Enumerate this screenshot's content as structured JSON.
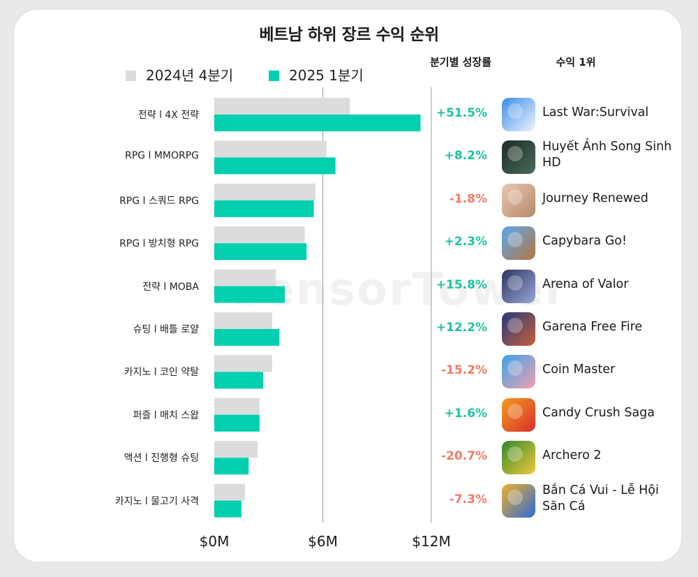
{
  "chart_data": {
    "type": "bar",
    "orientation": "horizontal",
    "title": "베트남 하위 장르 수익 순위",
    "categories": [
      "전략 l 4X 전략",
      "RPG l MMORPG",
      "RPG l 스쿼드 RPG",
      "RPG l 방치형 RPG",
      "전략 l MOBA",
      "슈팅 l 배틀 로얄",
      "카지노 l 코인 약탈",
      "퍼즐 l 매치 스왑",
      "액션 l 진행형 슈팅",
      "카지노 l 물고기 사격"
    ],
    "series": [
      {
        "name": "2024년 4분기",
        "color": "#dcdcdc",
        "values": [
          7.5,
          6.2,
          5.6,
          5.0,
          3.4,
          3.2,
          3.2,
          2.5,
          2.4,
          1.7
        ]
      },
      {
        "name": "2025 1분기",
        "color": "#00cfb0",
        "values": [
          11.4,
          6.7,
          5.5,
          5.1,
          3.9,
          3.6,
          2.7,
          2.5,
          1.9,
          1.5
        ]
      }
    ],
    "xlim": [
      0,
      12
    ],
    "xticks": [
      0,
      6,
      12
    ],
    "xtick_labels": [
      "$0M",
      "$6M",
      "$12M"
    ],
    "xlabel": "",
    "ylabel": "",
    "grid": "vertical-at-6",
    "legend_position": "top-left"
  },
  "columns": {
    "growth_header": "분기별 성장률",
    "top_app_header": "수익 1위"
  },
  "growth": [
    {
      "value": "+51.5%",
      "color": "#1fc2a0"
    },
    {
      "value": "+8.2%",
      "color": "#1fc2a0"
    },
    {
      "value": "-1.8%",
      "color": "#f07c63"
    },
    {
      "value": "+2.3%",
      "color": "#1fc2a0"
    },
    {
      "value": "+15.8%",
      "color": "#1fc2a0"
    },
    {
      "value": "+12.2%",
      "color": "#1fc2a0"
    },
    {
      "value": "-15.2%",
      "color": "#f07c63"
    },
    {
      "value": "+1.6%",
      "color": "#1fc2a0"
    },
    {
      "value": "-20.7%",
      "color": "#f07c63"
    },
    {
      "value": "-7.3%",
      "color": "#f07c63"
    }
  ],
  "top_apps": [
    {
      "name": "Last War:Survival",
      "icon": "last-war-survival-icon",
      "colors": [
        "#3b8de8",
        "#f0f4ff"
      ]
    },
    {
      "name": "Huyết Ảnh Song Sinh HD",
      "icon": "huyet-anh-song-sinh-icon",
      "colors": [
        "#1e2a25",
        "#4a6b5a"
      ]
    },
    {
      "name": "Journey Renewed",
      "icon": "journey-renewed-icon",
      "colors": [
        "#e8c7b0",
        "#b68a6a"
      ]
    },
    {
      "name": "Capybara Go!",
      "icon": "capybara-go-icon",
      "colors": [
        "#5aa8f0",
        "#b5763f"
      ]
    },
    {
      "name": "Arena of Valor",
      "icon": "arena-of-valor-icon",
      "colors": [
        "#2c3660",
        "#9aa6d8"
      ]
    },
    {
      "name": "Garena Free Fire",
      "icon": "garena-free-fire-icon",
      "colors": [
        "#233a7a",
        "#c95f3a"
      ]
    },
    {
      "name": "Coin Master",
      "icon": "coin-master-icon",
      "colors": [
        "#3aa3e6",
        "#f2a0b0"
      ]
    },
    {
      "name": "Candy Crush Saga",
      "icon": "candy-crush-saga-icon",
      "colors": [
        "#f29a1e",
        "#d9302b"
      ]
    },
    {
      "name": "Archero 2",
      "icon": "archero-2-icon",
      "colors": [
        "#2f8a2f",
        "#f2c83a"
      ]
    },
    {
      "name": "Bắn Cá Vui - Lễ Hội Săn Cá",
      "icon": "ban-ca-vui-icon",
      "colors": [
        "#f2b02a",
        "#2a6ad9"
      ]
    }
  ],
  "watermark": "SensorTower"
}
